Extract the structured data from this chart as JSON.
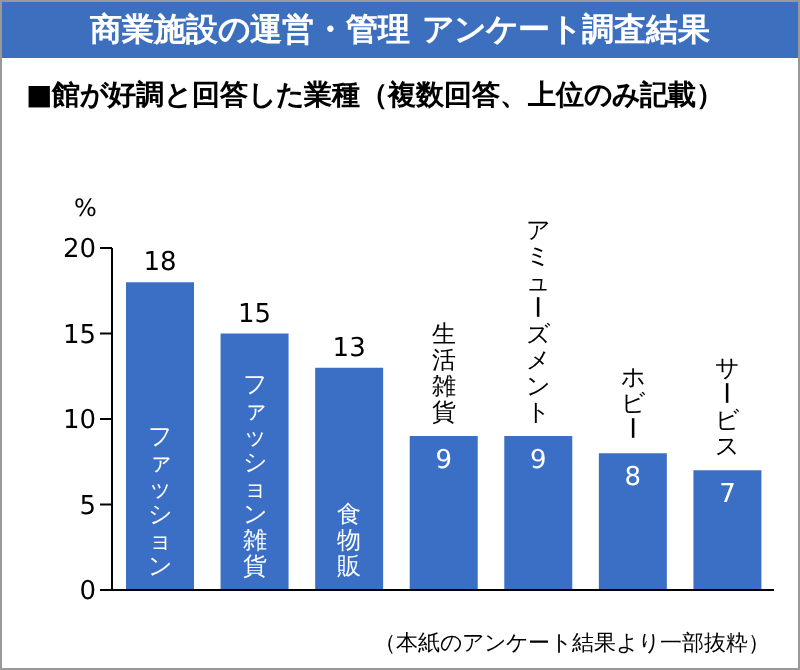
{
  "chart_data": {
    "type": "bar",
    "title": "商業施設の運営・管理 アンケート調査結果",
    "subtitle": "■館が好調と回答した業種（複数回答、上位のみ記載）",
    "ylabel": "%",
    "categories": [
      "ファッション",
      "ファッション雑貨",
      "食物販",
      "生活雑貨",
      "アミューズメント",
      "ホビー",
      "サービス"
    ],
    "values": [
      18,
      15,
      13,
      9,
      9,
      8,
      7
    ],
    "color": "#3b6fc6",
    "ylim": [
      0,
      20
    ],
    "yticks": [
      0,
      5,
      10,
      15,
      20
    ],
    "grid": false,
    "data_labels": true,
    "annotations": [
      "（本紙のアンケート結果より一部抜粋）"
    ]
  }
}
